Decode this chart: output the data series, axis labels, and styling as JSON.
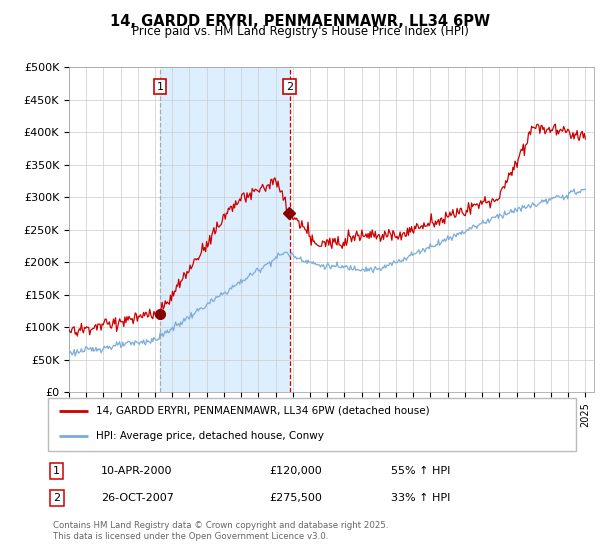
{
  "title": "14, GARDD ERYRI, PENMAENMAWR, LL34 6PW",
  "subtitle": "Price paid vs. HM Land Registry's House Price Index (HPI)",
  "ylim": [
    0,
    500000
  ],
  "yticks": [
    0,
    50000,
    100000,
    150000,
    200000,
    250000,
    300000,
    350000,
    400000,
    450000,
    500000
  ],
  "ytick_labels": [
    "£0",
    "£50K",
    "£100K",
    "£150K",
    "£200K",
    "£250K",
    "£300K",
    "£350K",
    "£400K",
    "£450K",
    "£500K"
  ],
  "legend_line1": "14, GARDD ERYRI, PENMAENMAWR, LL34 6PW (detached house)",
  "legend_line2": "HPI: Average price, detached house, Conwy",
  "sale1_label": "1",
  "sale1_date": "10-APR-2000",
  "sale1_price": "£120,000",
  "sale1_hpi": "55% ↑ HPI",
  "sale2_label": "2",
  "sale2_date": "26-OCT-2007",
  "sale2_price": "£275,500",
  "sale2_hpi": "33% ↑ HPI",
  "copyright": "Contains HM Land Registry data © Crown copyright and database right 2025.\nThis data is licensed under the Open Government Licence v3.0.",
  "line_color_red": "#cc0000",
  "line_color_blue": "#7aaddb",
  "vline1_color": "#aaaaaa",
  "vline2_color": "#cc0000",
  "marker_color": "#880000",
  "background_color": "#ffffff",
  "grid_color": "#cccccc",
  "shade_color": "#ddeeff",
  "sale1_x_year": 2000.28,
  "sale2_x_year": 2007.82,
  "sale1_price_val": 120000,
  "sale2_price_val": 275500,
  "xlim_start": 1995,
  "xlim_end": 2025.5
}
